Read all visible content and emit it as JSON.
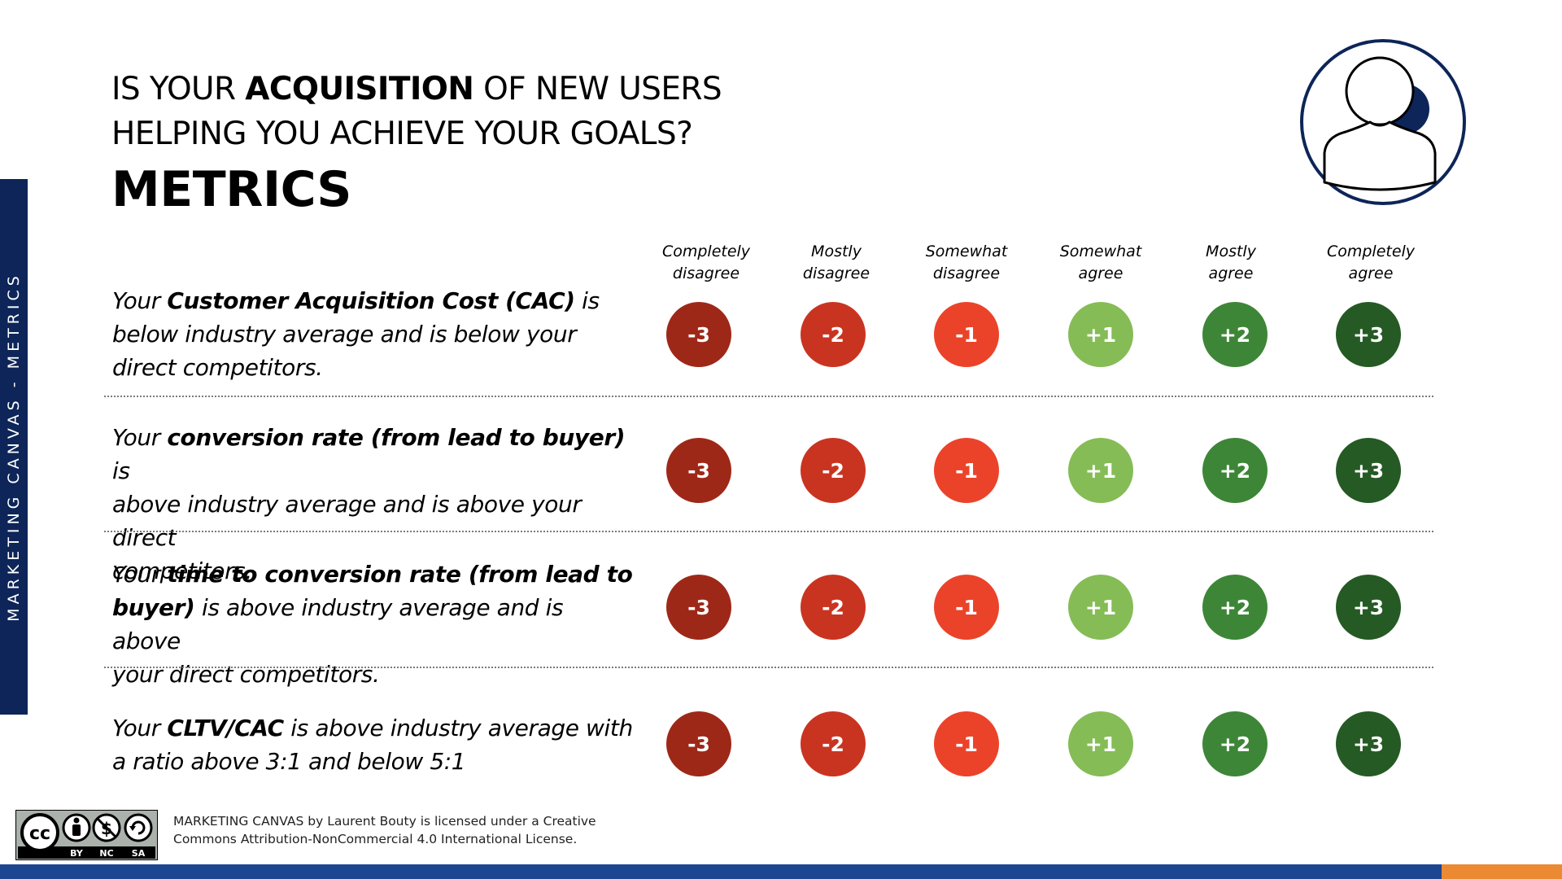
{
  "side_tab": {
    "label": "MARKETING CANVAS - METRICS"
  },
  "header": {
    "question_line1_pre": "IS YOUR ",
    "question_line1_bold": "ACQUISITION",
    "question_line1_post": " OF NEW USERS",
    "question_line2": "HELPING YOU ACHIEVE YOUR GOALS?",
    "title": "METRICS"
  },
  "persona_icon": "user-persona-icon",
  "scale": [
    {
      "line1": "Completely",
      "line2": "disagree",
      "value": "-3",
      "color": "#9e2818"
    },
    {
      "line1": "Mostly",
      "line2": "disagree",
      "value": "-2",
      "color": "#c93421"
    },
    {
      "line1": "Somewhat",
      "line2": "disagree",
      "value": "-1",
      "color": "#eb432a"
    },
    {
      "line1": "Somewhat",
      "line2": "agree",
      "value": "+1",
      "color": "#85bc56"
    },
    {
      "line1": "Mostly",
      "line2": "agree",
      "value": "+2",
      "color": "#3d8637"
    },
    {
      "line1": "Completely",
      "line2": "agree",
      "value": "+3",
      "color": "#255a24"
    }
  ],
  "statements": [
    {
      "l1_pre": "Your ",
      "l1_bold": "Customer Acquisition Cost (CAC)",
      "l1_post": " is",
      "l2": "below industry average and is below your",
      "l3": "direct competitors."
    },
    {
      "l1_pre": "Your ",
      "l1_bold": "conversion rate (from lead to buyer)",
      "l1_post": " is",
      "l2": "above industry average and is above your direct",
      "l3": "competitors."
    },
    {
      "l1_pre": "Your ",
      "l1_bold": "time to conversion rate (from lead to",
      "l2_bold": "buyer)",
      "l2_post": " is above industry average and is above",
      "l3": "your direct competitors."
    },
    {
      "l1_pre": "Your ",
      "l1_bold": "CLTV/CAC",
      "l1_post": " is above industry average with",
      "l2": "a ratio above 3:1 and below 5:1"
    }
  ],
  "license": {
    "badge_labels": [
      "BY",
      "NC",
      "SA"
    ],
    "badge_cc": "cc",
    "text_line1": "MARKETING CANVAS by Laurent Bouty is licensed under a Creative",
    "text_line2": "Commons Attribution-NonCommercial 4.0 International License."
  },
  "colors": {
    "navy": "#0d2558",
    "footer_blue": "#1d4690",
    "footer_orange": "#ec8a33"
  }
}
